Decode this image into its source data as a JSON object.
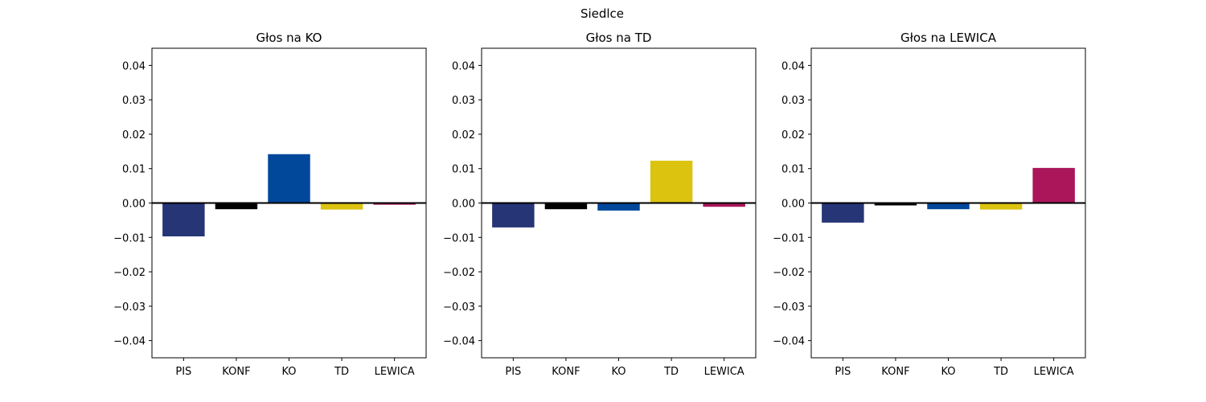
{
  "figure": {
    "suptitle": "Siedlce"
  },
  "colors": {
    "PIS": "#263576",
    "KONF": "#000000",
    "KO": "#01479a",
    "TD": "#dcc30f",
    "LEWICA": "#aa1659",
    "zero_line": "#000000",
    "axes_frame": "#000000"
  },
  "chart_data": [
    {
      "type": "bar",
      "title": "Głos na KO",
      "categories": [
        "PIS",
        "KONF",
        "KO",
        "TD",
        "LEWICA"
      ],
      "values": [
        -0.0097,
        -0.0018,
        0.0142,
        -0.0019,
        -0.0005
      ],
      "xlabel": "",
      "ylabel": "",
      "ylim": [
        -0.045,
        0.045
      ],
      "yticks": [
        -0.04,
        -0.03,
        -0.02,
        -0.01,
        0.0,
        0.01,
        0.02,
        0.03,
        0.04
      ],
      "ytick_labels": [
        "−0.04",
        "−0.03",
        "−0.02",
        "−0.01",
        "0.00",
        "0.01",
        "0.02",
        "0.03",
        "0.04"
      ],
      "grid": false,
      "zero_line": true
    },
    {
      "type": "bar",
      "title": "Głos na TD",
      "categories": [
        "PIS",
        "KONF",
        "KO",
        "TD",
        "LEWICA"
      ],
      "values": [
        -0.0071,
        -0.0018,
        -0.0022,
        0.0123,
        -0.0011
      ],
      "xlabel": "",
      "ylabel": "",
      "ylim": [
        -0.045,
        0.045
      ],
      "yticks": [
        -0.04,
        -0.03,
        -0.02,
        -0.01,
        0.0,
        0.01,
        0.02,
        0.03,
        0.04
      ],
      "ytick_labels": [
        "−0.04",
        "−0.03",
        "−0.02",
        "−0.01",
        "0.00",
        "0.01",
        "0.02",
        "0.03",
        "0.04"
      ],
      "grid": false,
      "zero_line": true
    },
    {
      "type": "bar",
      "title": "Głos na LEWICA",
      "categories": [
        "PIS",
        "KONF",
        "KO",
        "TD",
        "LEWICA"
      ],
      "values": [
        -0.0057,
        -0.0007,
        -0.0018,
        -0.0019,
        0.0102
      ],
      "xlabel": "",
      "ylabel": "",
      "ylim": [
        -0.045,
        0.045
      ],
      "yticks": [
        -0.04,
        -0.03,
        -0.02,
        -0.01,
        0.0,
        0.01,
        0.02,
        0.03,
        0.04
      ],
      "ytick_labels": [
        "−0.04",
        "−0.03",
        "−0.02",
        "−0.01",
        "0.00",
        "0.01",
        "0.02",
        "0.03",
        "0.04"
      ],
      "grid": false,
      "zero_line": true
    }
  ]
}
